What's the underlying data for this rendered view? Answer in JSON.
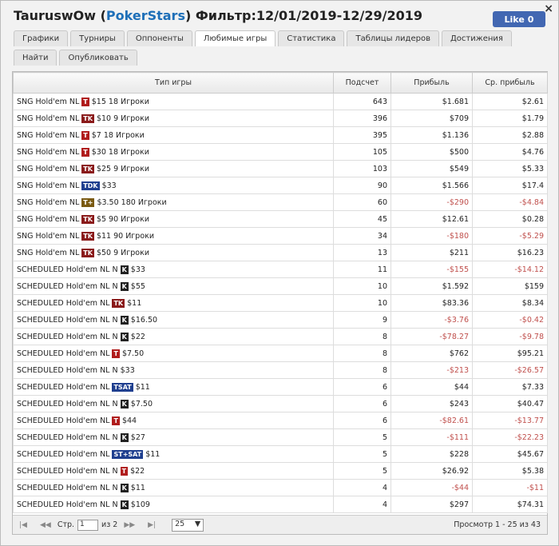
{
  "header": {
    "user": "TauruswOw",
    "site_open": "(",
    "site": "PokerStars",
    "site_close": ")",
    "filter": "Фильтр:12/01/2019-12/29/2019",
    "like_button": "Like",
    "like_count": "0",
    "close": "×"
  },
  "tabs": [
    "Графики",
    "Турниры",
    "Оппоненты",
    "Любимые игры",
    "Статистика",
    "Таблицы лидеров",
    "Достижения",
    "Найти",
    "Опубликовать"
  ],
  "active_tab": 3,
  "table": {
    "columns": [
      "Тип игры",
      "Подсчет",
      "Прибыль",
      "Ср. прибыль"
    ],
    "rows": [
      {
        "game": "SNG Hold'em NL",
        "badge": {
          "text": "T",
          "color": "#b01c1c"
        },
        "stake": "$15 18 Игроки",
        "count": "643",
        "profit": "$1.681",
        "avg": "$2.61"
      },
      {
        "game": "SNG Hold'em NL",
        "badge": {
          "text": "TK",
          "color": "#8a1a1a"
        },
        "stake": "$10 9 Игроки",
        "count": "396",
        "profit": "$709",
        "avg": "$1.79"
      },
      {
        "game": "SNG Hold'em NL",
        "badge": {
          "text": "T",
          "color": "#b01c1c"
        },
        "stake": "$7 18 Игроки",
        "count": "395",
        "profit": "$1.136",
        "avg": "$2.88"
      },
      {
        "game": "SNG Hold'em NL",
        "badge": {
          "text": "T",
          "color": "#b01c1c"
        },
        "stake": "$30 18 Игроки",
        "count": "105",
        "profit": "$500",
        "avg": "$4.76"
      },
      {
        "game": "SNG Hold'em NL",
        "badge": {
          "text": "TK",
          "color": "#8a1a1a"
        },
        "stake": "$25 9 Игроки",
        "count": "103",
        "profit": "$549",
        "avg": "$5.33"
      },
      {
        "game": "SNG Hold'em NL",
        "badge": {
          "text": "TDK",
          "color": "#1f3f8f"
        },
        "stake": "$33",
        "count": "90",
        "profit": "$1.566",
        "avg": "$17.4"
      },
      {
        "game": "SNG Hold'em NL",
        "badge": {
          "text": "T+",
          "color": "#7a5a12"
        },
        "stake": "$3.50 180 Игроки",
        "count": "60",
        "profit": "-$290",
        "avg": "-$4.84"
      },
      {
        "game": "SNG Hold'em NL",
        "badge": {
          "text": "TK",
          "color": "#8a1a1a"
        },
        "stake": "$5 90 Игроки",
        "count": "45",
        "profit": "$12.61",
        "avg": "$0.28"
      },
      {
        "game": "SNG Hold'em NL",
        "badge": {
          "text": "TK",
          "color": "#8a1a1a"
        },
        "stake": "$11 90 Игроки",
        "count": "34",
        "profit": "-$180",
        "avg": "-$5.29"
      },
      {
        "game": "SNG Hold'em NL",
        "badge": {
          "text": "TK",
          "color": "#8a1a1a"
        },
        "stake": "$50 9 Игроки",
        "count": "13",
        "profit": "$211",
        "avg": "$16.23"
      },
      {
        "game": "SCHEDULED Hold'em NL N",
        "badge": {
          "text": "K",
          "color": "#222222"
        },
        "stake": "$33",
        "count": "11",
        "profit": "-$155",
        "avg": "-$14.12"
      },
      {
        "game": "SCHEDULED Hold'em NL N",
        "badge": {
          "text": "K",
          "color": "#222222"
        },
        "stake": "$55",
        "count": "10",
        "profit": "$1.592",
        "avg": "$159"
      },
      {
        "game": "SCHEDULED Hold'em NL",
        "badge": {
          "text": "TK",
          "color": "#8a1a1a"
        },
        "stake": "$11",
        "count": "10",
        "profit": "$83.36",
        "avg": "$8.34"
      },
      {
        "game": "SCHEDULED Hold'em NL N",
        "badge": {
          "text": "K",
          "color": "#222222"
        },
        "stake": "$16.50",
        "count": "9",
        "profit": "-$3.76",
        "avg": "-$0.42"
      },
      {
        "game": "SCHEDULED Hold'em NL N",
        "badge": {
          "text": "K",
          "color": "#222222"
        },
        "stake": "$22",
        "count": "8",
        "profit": "-$78.27",
        "avg": "-$9.78"
      },
      {
        "game": "SCHEDULED Hold'em NL",
        "badge": {
          "text": "T",
          "color": "#b01c1c"
        },
        "stake": "$7.50",
        "count": "8",
        "profit": "$762",
        "avg": "$95.21"
      },
      {
        "game": "SCHEDULED Hold'em NL N",
        "stake": "$33",
        "count": "8",
        "profit": "-$213",
        "avg": "-$26.57"
      },
      {
        "game": "SCHEDULED Hold'em NL",
        "badge": {
          "text": "TSAT",
          "color": "#1f3f8f"
        },
        "stake": "$11",
        "count": "6",
        "profit": "$44",
        "avg": "$7.33"
      },
      {
        "game": "SCHEDULED Hold'em NL N",
        "badge": {
          "text": "K",
          "color": "#222222"
        },
        "stake": "$7.50",
        "count": "6",
        "profit": "$243",
        "avg": "$40.47"
      },
      {
        "game": "SCHEDULED Hold'em NL",
        "badge": {
          "text": "T",
          "color": "#b01c1c"
        },
        "stake": "$44",
        "count": "6",
        "profit": "-$82.61",
        "avg": "-$13.77"
      },
      {
        "game": "SCHEDULED Hold'em NL N",
        "badge": {
          "text": "K",
          "color": "#222222"
        },
        "stake": "$27",
        "count": "5",
        "profit": "-$111",
        "avg": "-$22.23"
      },
      {
        "game": "SCHEDULED Hold'em NL",
        "badge": {
          "text": "ST+SAT",
          "color": "#1f3f8f"
        },
        "stake": "$11",
        "count": "5",
        "profit": "$228",
        "avg": "$45.67"
      },
      {
        "game": "SCHEDULED Hold'em NL N",
        "badge": {
          "text": "T",
          "color": "#b01c1c"
        },
        "stake": "$22",
        "count": "5",
        "profit": "$26.92",
        "avg": "$5.38"
      },
      {
        "game": "SCHEDULED Hold'em NL N",
        "badge": {
          "text": "K",
          "color": "#222222"
        },
        "stake": "$11",
        "count": "4",
        "profit": "-$44",
        "avg": "-$11"
      },
      {
        "game": "SCHEDULED Hold'em NL N",
        "badge": {
          "text": "K",
          "color": "#222222"
        },
        "stake": "$109",
        "count": "4",
        "profit": "$297",
        "avg": "$74.31"
      }
    ]
  },
  "pager": {
    "page_label": "Стр.",
    "page": "1",
    "of": "из 2",
    "page_size": "25",
    "summary": "Просмотр 1 - 25 из 43"
  }
}
